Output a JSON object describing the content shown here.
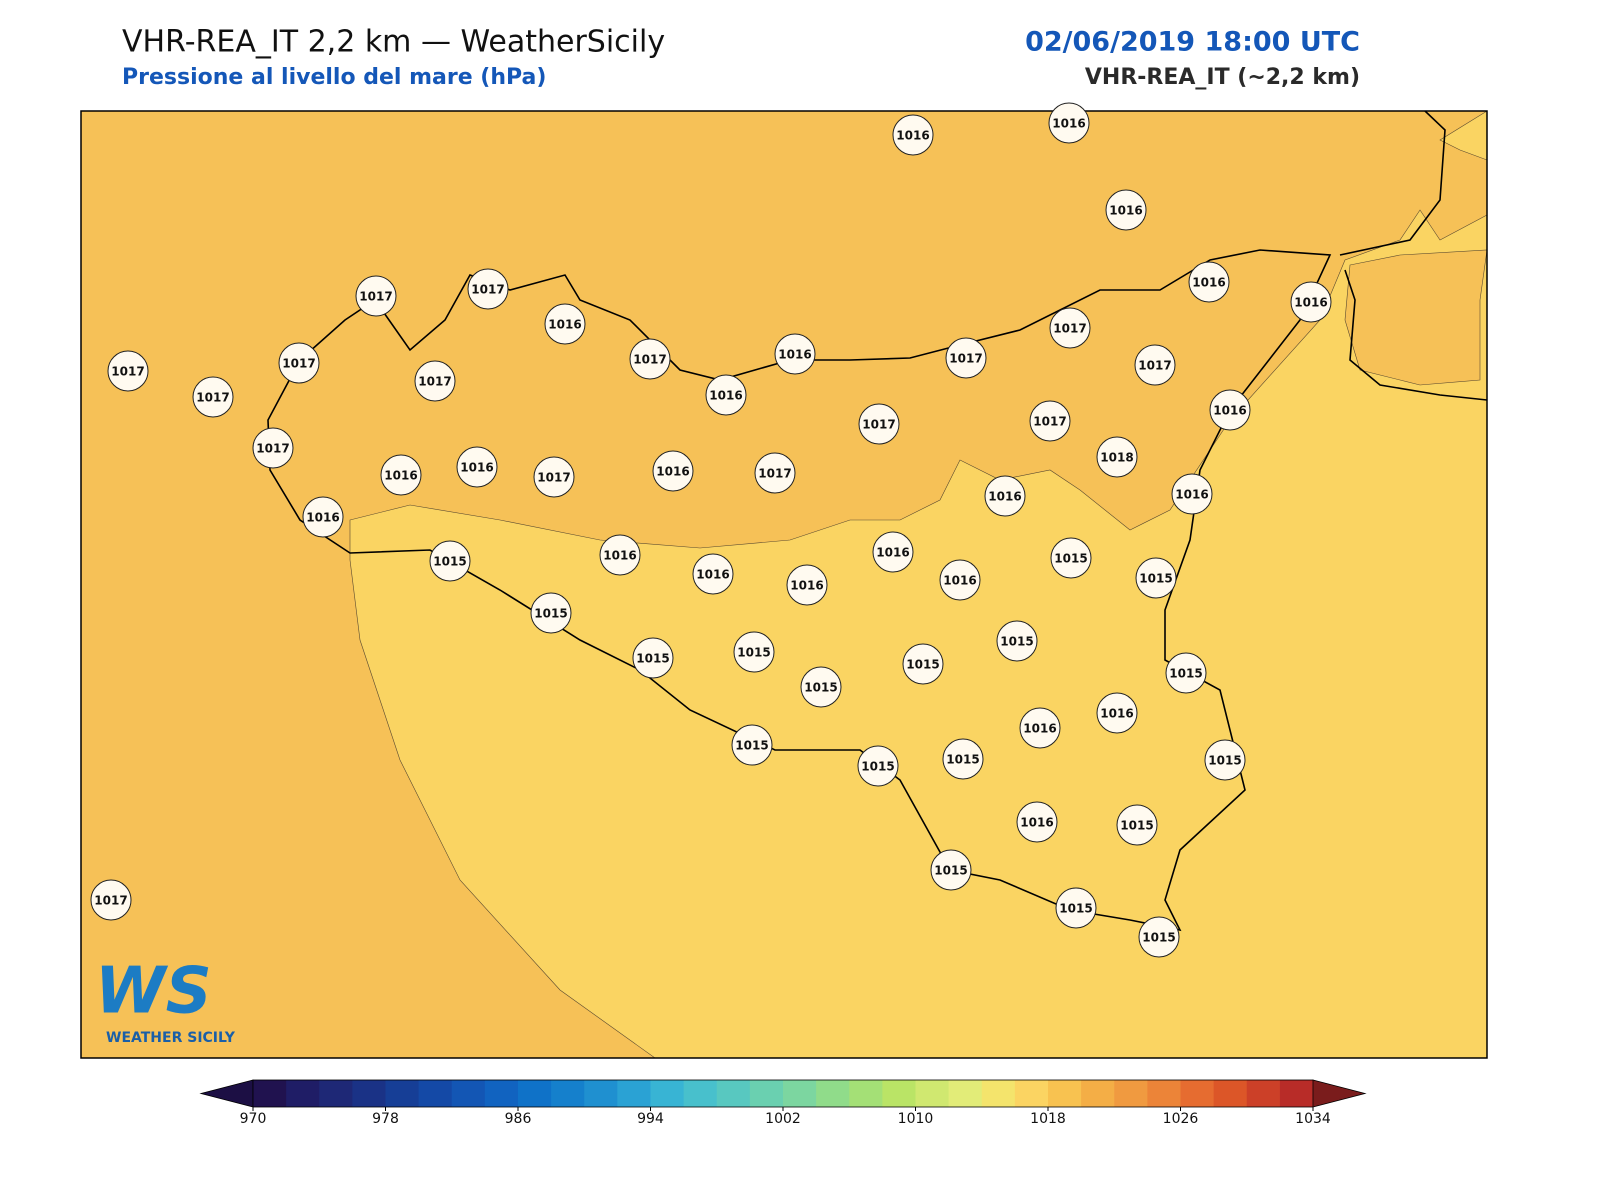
{
  "header": {
    "title": "VHR-REA_IT 2,2 km — WeatherSicily",
    "subtitle": "Pressione al livello del mare (hPa)",
    "datetime": "02/06/2019 18:00 UTC",
    "model": "VHR-REA_IT (~2,2 km)"
  },
  "stations": [
    1016,
    1016,
    1016,
    1017,
    1017,
    1016,
    1016,
    1016,
    1017,
    1017,
    1016,
    1017,
    1017,
    1017,
    1017,
    1017,
    1017,
    1016,
    1016,
    1017,
    1017,
    1017,
    1018,
    1016,
    1016,
    1017,
    1016,
    1017,
    1016,
    1016,
    1016,
    1015,
    1016,
    1016,
    1015,
    1016,
    1016,
    1016,
    1015,
    1015,
    1015,
    1015,
    1015,
    1015,
    1015,
    1015,
    1016,
    1016,
    1015,
    1015,
    1015,
    1015,
    1016,
    1015,
    1015,
    1015,
    1015,
    1017
  ],
  "colorbar": {
    "range": [
      970,
      1034
    ],
    "ticks": [
      970,
      978,
      986,
      994,
      1002,
      1010,
      1018,
      1026,
      1034
    ],
    "under": "#1c0f44",
    "over": "#7a1c1c",
    "colors": [
      "#20124f",
      "#1f1d66",
      "#1e2876",
      "#1a3286",
      "#163e96",
      "#1449a6",
      "#1356b4",
      "#1163c0",
      "#0f72c8",
      "#1580cc",
      "#1f90d0",
      "#2aa2d4",
      "#38b4d4",
      "#48c0cc",
      "#58c8c0",
      "#6ad0b0",
      "#7cd6a0",
      "#90dc8a",
      "#a4e076",
      "#bae466",
      "#d0e870",
      "#e2ec78",
      "#f4e46c",
      "#fbd462",
      "#f8c250",
      "#f4ae46",
      "#f09a40",
      "#ec8438",
      "#e66c30",
      "#dc5628",
      "#cc4028",
      "#b82c28"
    ]
  },
  "logo": {
    "initials": "WS",
    "name": "WEATHER SICILY"
  }
}
